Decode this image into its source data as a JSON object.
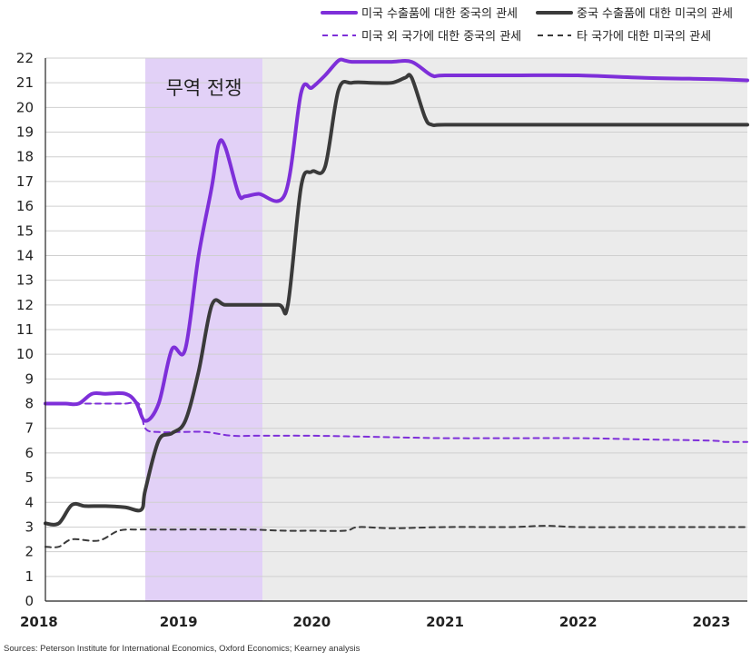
{
  "chart_data": {
    "type": "line",
    "x_unit": "year",
    "x_ticks": [
      "2018",
      "2019",
      "2020",
      "2021",
      "2022",
      "2023"
    ],
    "xlim": [
      2018.0,
      2023.27
    ],
    "ylim": [
      0,
      22
    ],
    "y_ticks": [
      0,
      1,
      2,
      3,
      4,
      5,
      6,
      7,
      8,
      9,
      10,
      11,
      12,
      13,
      14,
      15,
      16,
      17,
      18,
      19,
      20,
      21,
      22
    ],
    "grid": true,
    "legend_position": "top-right",
    "shaded_regions": [
      {
        "label": "무역 전쟁",
        "x_start": 2018.75,
        "x_end": 2019.63,
        "color": "#e2d1f7"
      },
      {
        "label": "",
        "x_start": 2019.63,
        "x_end": 2023.27,
        "color": "#ebebeb"
      }
    ],
    "series": [
      {
        "name": "미국 수출품에 대한 중국의 관세",
        "color": "#7e2fd9",
        "dashed": false,
        "x": [
          2018.0,
          2018.15,
          2018.25,
          2018.35,
          2018.45,
          2018.6,
          2018.68,
          2018.75,
          2018.85,
          2018.95,
          2019.05,
          2019.15,
          2019.25,
          2019.3,
          2019.35,
          2019.45,
          2019.5,
          2019.6,
          2019.8,
          2019.92,
          2020.0,
          2020.1,
          2020.2,
          2020.25,
          2020.3,
          2020.45,
          2020.6,
          2020.75,
          2020.9,
          2021.0,
          2021.5,
          2022.0,
          2022.5,
          2023.0,
          2023.27
        ],
        "y": [
          8.0,
          8.0,
          8.0,
          8.4,
          8.4,
          8.4,
          8.05,
          7.3,
          8.0,
          10.2,
          10.2,
          14.0,
          16.8,
          18.5,
          18.4,
          16.5,
          16.4,
          16.5,
          16.5,
          20.6,
          20.8,
          21.3,
          21.9,
          21.9,
          21.85,
          21.85,
          21.85,
          21.85,
          21.3,
          21.3,
          21.3,
          21.3,
          21.2,
          21.15,
          21.1
        ]
      },
      {
        "name": "중국 수출품에 대한 미국의 관세",
        "color": "#3a3a3a",
        "dashed": false,
        "x": [
          2018.0,
          2018.1,
          2018.2,
          2018.3,
          2018.45,
          2018.6,
          2018.72,
          2018.75,
          2018.85,
          2018.95,
          2019.05,
          2019.15,
          2019.25,
          2019.35,
          2019.5,
          2019.75,
          2019.82,
          2019.92,
          2020.0,
          2020.1,
          2020.2,
          2020.3,
          2020.45,
          2020.6,
          2020.7,
          2020.75,
          2020.85,
          2020.9,
          2021.0,
          2021.5,
          2022.0,
          2022.5,
          2023.0,
          2023.27
        ],
        "y": [
          3.15,
          3.15,
          3.9,
          3.85,
          3.85,
          3.8,
          3.7,
          4.5,
          6.5,
          6.8,
          7.3,
          9.3,
          12.0,
          12.0,
          12.0,
          12.0,
          12.0,
          16.8,
          17.4,
          17.6,
          20.7,
          21.0,
          21.0,
          21.0,
          21.2,
          21.2,
          19.6,
          19.3,
          19.3,
          19.3,
          19.3,
          19.3,
          19.3,
          19.3
        ]
      },
      {
        "name": "미국 외 국가에 대한 중국의 관세",
        "color": "#7e2fd9",
        "dashed": true,
        "x": [
          2018.0,
          2018.2,
          2018.4,
          2018.6,
          2018.7,
          2018.75,
          2018.85,
          2019.0,
          2019.2,
          2019.4,
          2019.6,
          2020.0,
          2020.5,
          2021.0,
          2021.5,
          2022.0,
          2022.5,
          2023.0,
          2023.1,
          2023.27
        ],
        "y": [
          8.0,
          8.0,
          8.0,
          8.0,
          8.0,
          7.0,
          6.85,
          6.85,
          6.85,
          6.7,
          6.7,
          6.7,
          6.65,
          6.6,
          6.6,
          6.6,
          6.55,
          6.5,
          6.45,
          6.45
        ]
      },
      {
        "name": "타 국가에 대한 미국의 관세",
        "color": "#3a3a3a",
        "dashed": true,
        "x": [
          2018.0,
          2018.1,
          2018.2,
          2018.4,
          2018.55,
          2018.7,
          2018.8,
          2019.0,
          2019.5,
          2019.8,
          2020.0,
          2020.25,
          2020.35,
          2020.6,
          2021.0,
          2021.5,
          2021.75,
          2022.0,
          2022.5,
          2023.0,
          2023.27
        ],
        "y": [
          2.2,
          2.2,
          2.5,
          2.45,
          2.85,
          2.9,
          2.9,
          2.9,
          2.9,
          2.85,
          2.85,
          2.85,
          3.0,
          2.95,
          3.0,
          3.0,
          3.05,
          3.0,
          3.0,
          3.0,
          3.0
        ]
      }
    ],
    "source": "Sources: Peterson Institute for International Economics, Oxford Economics; Kearney analysis"
  }
}
